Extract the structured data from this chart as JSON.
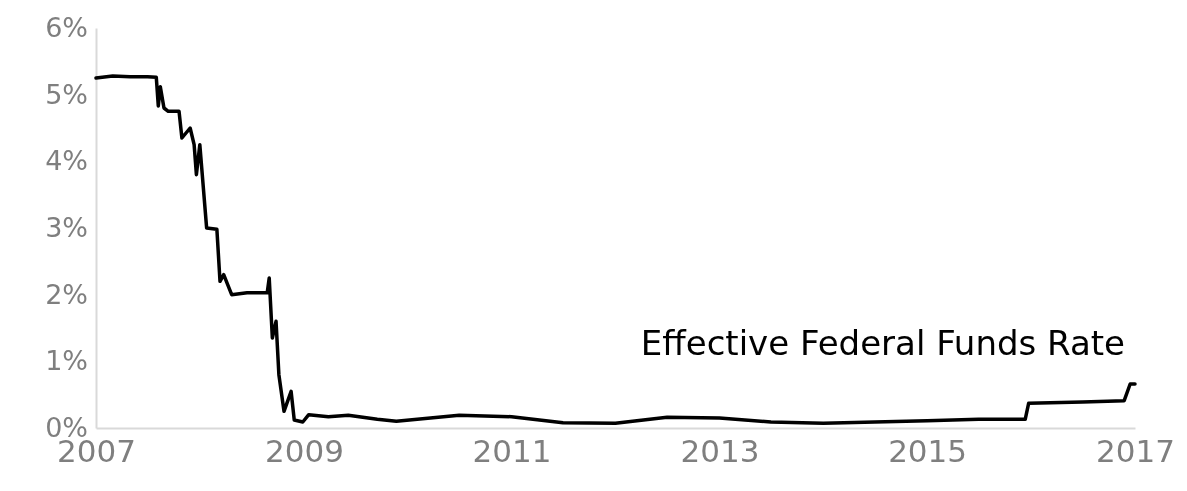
{
  "chart_data": {
    "type": "line",
    "xlim": [
      "2007-01-01",
      "2017-01-01"
    ],
    "xticks": [
      {
        "value": "2007-01-01",
        "label": "2007"
      },
      {
        "value": "2009-01-01",
        "label": "2009"
      },
      {
        "value": "2011-01-01",
        "label": "2011"
      },
      {
        "value": "2013-01-01",
        "label": "2013"
      },
      {
        "value": "2015-01-01",
        "label": "2015"
      },
      {
        "value": "2017-01-01",
        "label": "2017"
      }
    ],
    "ylim": [
      0,
      6
    ],
    "yticks": [
      {
        "value": 0,
        "label": "0%"
      },
      {
        "value": 1,
        "label": "1%"
      },
      {
        "value": 2,
        "label": "2%"
      },
      {
        "value": 3,
        "label": "3%"
      },
      {
        "value": 4,
        "label": "4%"
      },
      {
        "value": 5,
        "label": "5%"
      },
      {
        "value": 6,
        "label": "6%"
      }
    ],
    "grid": false,
    "legend": false,
    "marker": "none",
    "line_style": "solid",
    "series": [
      {
        "name": "Effective Federal Funds Rate",
        "color": "#000000",
        "x": [
          "2007-01-01",
          "2007-03-01",
          "2007-05-01",
          "2007-07-01",
          "2007-08-01",
          "2007-08-08",
          "2007-08-15",
          "2007-08-28",
          "2007-09-12",
          "2007-10-20",
          "2007-10-30",
          "2007-11-28",
          "2007-12-12",
          "2007-12-20",
          "2008-01-01",
          "2008-01-25",
          "2008-03-01",
          "2008-03-12",
          "2008-03-25",
          "2008-04-22",
          "2008-06-15",
          "2008-08-25",
          "2008-09-01",
          "2008-09-12",
          "2008-09-25",
          "2008-10-05",
          "2008-10-23",
          "2008-11-17",
          "2008-11-28",
          "2008-12-28",
          "2009-01-18",
          "2009-03-28",
          "2009-06-06",
          "2009-09-16",
          "2009-11-22",
          "2010-07-01",
          "2011-01-01",
          "2011-07-01",
          "2012-01-01",
          "2012-07-01",
          "2013-01-01",
          "2013-07-01",
          "2014-01-01",
          "2014-07-01",
          "2015-01-01",
          "2015-07-01",
          "2015-12-12",
          "2015-12-24",
          "2016-07-01",
          "2016-11-24",
          "2016-12-15",
          "2017-01-01"
        ],
        "values": [
          5.25,
          5.28,
          5.27,
          5.27,
          5.26,
          4.83,
          5.12,
          4.8,
          4.75,
          4.75,
          4.35,
          4.5,
          4.25,
          3.8,
          4.25,
          3.0,
          2.98,
          2.2,
          2.3,
          2.0,
          2.03,
          2.03,
          2.25,
          1.35,
          1.6,
          0.8,
          0.25,
          0.55,
          0.12,
          0.09,
          0.2,
          0.17,
          0.19,
          0.13,
          0.1,
          0.19,
          0.17,
          0.08,
          0.07,
          0.16,
          0.15,
          0.09,
          0.07,
          0.09,
          0.11,
          0.13,
          0.13,
          0.37,
          0.39,
          0.41,
          0.66,
          0.66
        ]
      }
    ]
  }
}
